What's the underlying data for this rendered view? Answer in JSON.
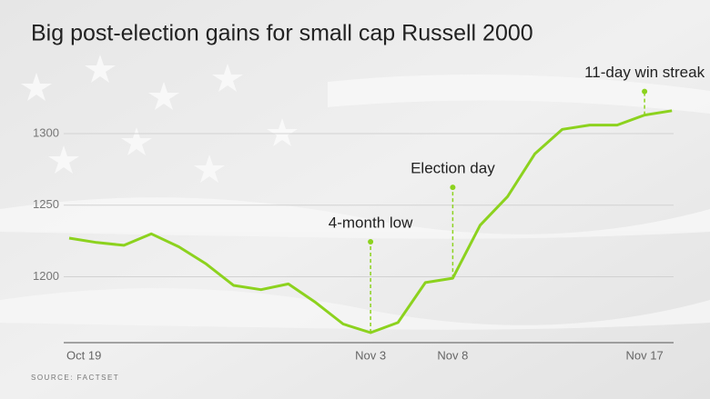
{
  "chart_data": {
    "type": "line",
    "title": "Big post-election gains for small cap Russell 2000",
    "source": "SOURCE: FACTSET",
    "categories": [
      "Oct 19",
      null,
      null,
      null,
      null,
      null,
      null,
      null,
      null,
      null,
      null,
      "Nov 3",
      null,
      null,
      "Nov 8",
      null,
      null,
      null,
      null,
      null,
      null,
      "Nov 17",
      null
    ],
    "series": [
      {
        "name": "Russell 2000",
        "color": "#8cd21e",
        "values": [
          1227,
          1224,
          1222,
          1230,
          1221,
          1209,
          1194,
          1191,
          1195,
          1182,
          1167,
          1161,
          1168,
          1196,
          1199,
          1236,
          1256,
          1286,
          1303,
          1306,
          1306,
          1313,
          1316
        ]
      }
    ],
    "ylim": [
      1154,
      1354
    ],
    "yticks": [
      1200,
      1250,
      1300
    ],
    "grid": true,
    "annotations": [
      {
        "text": "4-month low",
        "x": "Nov 3"
      },
      {
        "text": "Election day",
        "x": "Nov 8"
      },
      {
        "text": "11-day win streak",
        "x": "Nov 17"
      }
    ]
  }
}
